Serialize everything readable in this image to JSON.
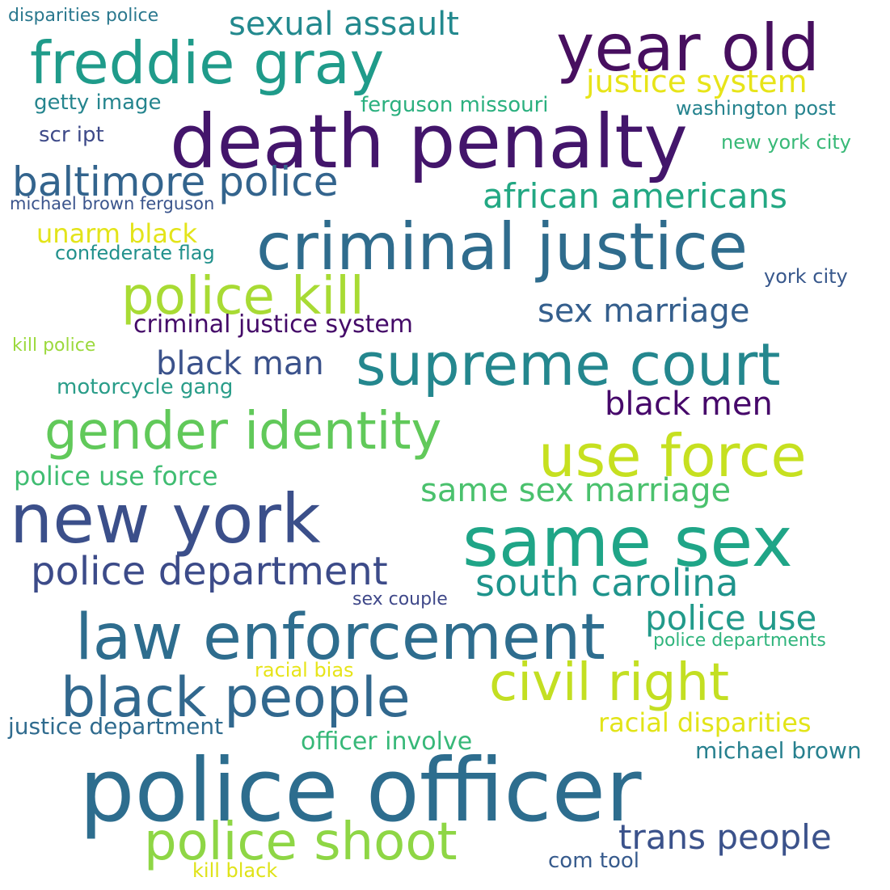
{
  "words": [
    {
      "text": "police officer",
      "color": "#2d6d8e"
    },
    {
      "text": "death penalty",
      "color": "#43156b"
    },
    {
      "text": "criminal justice",
      "color": "#2f6c8d"
    },
    {
      "text": "same sex",
      "color": "#1fa587"
    },
    {
      "text": "law enforcement",
      "color": "#2e6d8e"
    },
    {
      "text": "new york",
      "color": "#3b4f8a"
    },
    {
      "text": "freddie gray",
      "color": "#1f9b8a"
    },
    {
      "text": "year old",
      "color": "#470f5f"
    },
    {
      "text": "supreme court",
      "color": "#24878e"
    },
    {
      "text": "use force",
      "color": "#c6e020"
    },
    {
      "text": "gender identity",
      "color": "#61c95a"
    },
    {
      "text": "black people",
      "color": "#31688e"
    },
    {
      "text": "police kill",
      "color": "#a8db34"
    },
    {
      "text": "civil right",
      "color": "#c3df22"
    },
    {
      "text": "police shoot",
      "color": "#8ed645"
    },
    {
      "text": "baltimore police",
      "color": "#33648d"
    },
    {
      "text": "police department",
      "color": "#3c4b89"
    },
    {
      "text": "south carolina",
      "color": "#1f948c"
    },
    {
      "text": "african americans",
      "color": "#23a883"
    },
    {
      "text": "same sex marriage",
      "color": "#4ac16d"
    },
    {
      "text": "trans people",
      "color": "#3b528b"
    },
    {
      "text": "sexual assault",
      "color": "#23898e"
    },
    {
      "text": "sex marriage",
      "color": "#355f8d"
    },
    {
      "text": "police use",
      "color": "#229a8a"
    },
    {
      "text": "black men",
      "color": "#46086a"
    },
    {
      "text": "black man",
      "color": "#3b528b"
    },
    {
      "text": "justice system",
      "color": "#e7e419"
    },
    {
      "text": "racial disparities",
      "color": "#e2e418"
    },
    {
      "text": "police use force",
      "color": "#40bd72"
    },
    {
      "text": "criminal justice system",
      "color": "#440a68"
    },
    {
      "text": "unarm black",
      "color": "#e3e41a"
    },
    {
      "text": "officer involve",
      "color": "#37b878"
    },
    {
      "text": "justice department",
      "color": "#2f6b8e"
    },
    {
      "text": "michael brown",
      "color": "#27808e"
    },
    {
      "text": "ferguson missouri",
      "color": "#2bb07f"
    },
    {
      "text": "motorcycle gang",
      "color": "#2a9d89"
    },
    {
      "text": "racial bias",
      "color": "#e7e419"
    },
    {
      "text": "new york city",
      "color": "#38b977"
    },
    {
      "text": "washington post",
      "color": "#25838e"
    },
    {
      "text": "york city",
      "color": "#38588c"
    },
    {
      "text": "com tool",
      "color": "#375b8d"
    },
    {
      "text": "kill black",
      "color": "#dfe318"
    },
    {
      "text": "confederate flag",
      "color": "#21918c"
    },
    {
      "text": "police departments",
      "color": "#2fb47c"
    },
    {
      "text": "sex couple",
      "color": "#3f4889"
    },
    {
      "text": "getty image",
      "color": "#25858e"
    },
    {
      "text": "scr ipt",
      "color": "#3e4a89"
    },
    {
      "text": "kill police",
      "color": "#9bd93c"
    },
    {
      "text": "disparities police",
      "color": "#2a788e"
    },
    {
      "text": "michael brown ferguson",
      "color": "#3a548c"
    }
  ]
}
